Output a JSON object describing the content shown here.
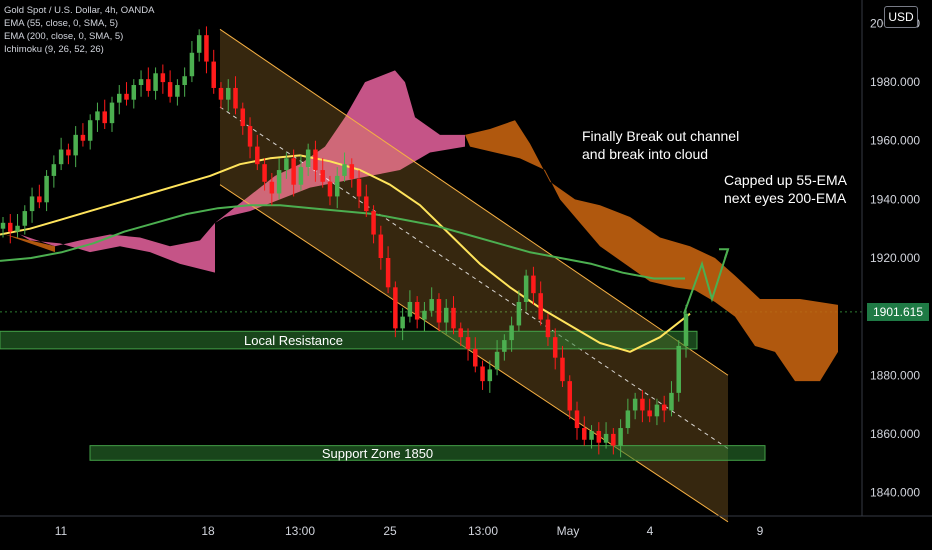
{
  "legend": {
    "symbol": "Gold Spot / U.S. Dollar, 4h, OANDA",
    "indicators": [
      "EMA (55, close, 0, SMA, 5)",
      "EMA (200, close, 0, SMA, 5)",
      "Ichimoku (9, 26, 52, 26)"
    ]
  },
  "currency": "USD",
  "last_price": "1901.615",
  "annotations": {
    "breakout": [
      "Finally Break out channel",
      "and break into cloud"
    ],
    "ema": [
      "Capped up 55-EMA",
      "next eyes 200-EMA"
    ]
  },
  "colors": {
    "up": "#4caf50",
    "down": "#ff1b1b",
    "ema55": "#ffe45c",
    "ema200": "#4caf50",
    "cloud_bull": "#e0609a",
    "cloud_bear": "#c86410",
    "channel": "#f6b043",
    "zone": "#2e7d32"
  },
  "chart_data": {
    "type": "candlestick",
    "title": "Gold Spot / U.S. Dollar, 4h, OANDA",
    "xlabel": "",
    "ylabel": "",
    "ylim": [
      1832,
      2008
    ],
    "y_ticks": [
      "2000.000",
      "1980.000",
      "1960.000",
      "1940.000",
      "1920.000",
      "1880.000",
      "1860.000",
      "1840.000"
    ],
    "x_ticks": [
      "11",
      "18",
      "13:00",
      "25",
      "13:00",
      "May",
      "4",
      "9"
    ],
    "last_price": 1901.615,
    "zones": [
      {
        "label": "Local Resistance",
        "low": 1889,
        "high": 1895
      },
      {
        "label": "Support Zone 1850",
        "low": 1851,
        "high": 1856
      }
    ],
    "channel": {
      "upper_start": 1998,
      "upper_end": 1880,
      "lower_start": 1945,
      "lower_end": 1830
    },
    "candles_close": [
      1932,
      1929,
      1931,
      1936,
      1941,
      1939,
      1948,
      1952,
      1957,
      1955,
      1962,
      1960,
      1967,
      1970,
      1966,
      1973,
      1976,
      1974,
      1979,
      1981,
      1977,
      1983,
      1980,
      1975,
      1979,
      1982,
      1990,
      1996,
      1987,
      1978,
      1974,
      1978,
      1971,
      1965,
      1958,
      1952,
      1946,
      1942,
      1950,
      1954,
      1945,
      1951,
      1957,
      1950,
      1946,
      1941,
      1948,
      1952,
      1947,
      1941,
      1936,
      1928,
      1920,
      1910,
      1896,
      1900,
      1905,
      1899,
      1902,
      1906,
      1898,
      1903,
      1896,
      1893,
      1889,
      1883,
      1878,
      1882,
      1888,
      1892,
      1897,
      1905,
      1914,
      1908,
      1899,
      1893,
      1886,
      1878,
      1868,
      1862,
      1858,
      1861,
      1857,
      1860,
      1856,
      1862,
      1868,
      1872,
      1868,
      1866,
      1870,
      1868,
      1874,
      1890,
      1901
    ],
    "ema55": [
      1928,
      1930,
      1933,
      1936,
      1939,
      1942,
      1945,
      1948,
      1952,
      1954,
      1955,
      1953,
      1950,
      1945,
      1938,
      1928,
      1918,
      1910,
      1903,
      1897,
      1891,
      1888,
      1893,
      1901
    ],
    "ema200": [
      1919,
      1920,
      1922,
      1925,
      1929,
      1932,
      1935,
      1937,
      1938,
      1938,
      1937,
      1936,
      1935,
      1933,
      1931,
      1928,
      1925,
      1922,
      1920,
      1918,
      1915,
      1913,
      1913
    ],
    "projection": [
      1901,
      1918,
      1906,
      1923
    ]
  }
}
